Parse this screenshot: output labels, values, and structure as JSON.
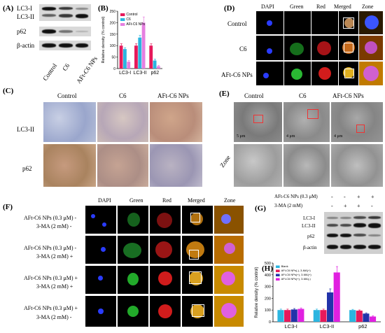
{
  "panels": {
    "A": {
      "label": "(A)",
      "rows": [
        "LC3-I",
        "LC3-II",
        "p62",
        "β-actin"
      ],
      "cols": [
        "Control",
        "C6",
        "AFt-C6 NPs"
      ]
    },
    "B": {
      "label": "(B)"
    },
    "C": {
      "label": "(C)",
      "cols": [
        "Control",
        "C6",
        "AFt-C6 NPs"
      ],
      "rows": [
        "LC3-II",
        "p62"
      ]
    },
    "D": {
      "label": "(D)",
      "cols": [
        "DAPI",
        "Green",
        "Red",
        "Merged",
        "Zone"
      ],
      "rows": [
        "Control",
        "C6",
        "AFt-C6 NPs"
      ]
    },
    "E": {
      "label": "(E)",
      "cols": [
        "Control",
        "C6",
        "AFt-C6 NPs"
      ],
      "row2": "Zone",
      "scale": [
        "5 μm",
        "4 μm",
        "4 μm"
      ]
    },
    "F": {
      "label": "(F)",
      "cols": [
        "DAPI",
        "Green",
        "Red",
        "Merged",
        "Zone"
      ],
      "rows": [
        {
          "a": "AFt-C6 NPs (0.3 μM) -",
          "b": "3-MA (2 mM) -"
        },
        {
          "a": "AFt-C6 NPs (0.3 μM) -",
          "b": "3-MA (2 mM) +"
        },
        {
          "a": "AFt-C6 NPs (0.3 μM) +",
          "b": "3-MA (2 mM) +"
        },
        {
          "a": "AFt-C6 NPs (0.3 μM) +",
          "b": "3-MA (2 mM) -"
        }
      ]
    },
    "G": {
      "label": "(G)",
      "cond1": "AFt-C6 NPs (0.3 μM)",
      "cond2": "3-MA (2 mM)",
      "signs1": [
        "-",
        "-",
        "+",
        "+"
      ],
      "signs2": [
        "-",
        "+",
        "+",
        "-"
      ],
      "rows": [
        "LC3-I",
        "LC3-II",
        "p62",
        "β-actin"
      ]
    },
    "H": {
      "label": "(H)"
    }
  },
  "chart_data": [
    {
      "type": "bar",
      "panel": "B",
      "ylabel": "Relative density (% control)",
      "categories": [
        "LC3-I",
        "LC3-II",
        "p62"
      ],
      "ylim": [
        0,
        250
      ],
      "yticks": [
        0,
        50,
        100,
        150,
        200,
        250
      ],
      "legend": "top-left",
      "series": [
        {
          "name": "Control",
          "color": "#e6195b",
          "values": [
            100,
            100,
            100
          ],
          "err": [
            8,
            8,
            8
          ]
        },
        {
          "name": "C6",
          "color": "#2bb5e0",
          "values": [
            85,
            135,
            35
          ],
          "err": [
            6,
            10,
            6
          ]
        },
        {
          "name": "AFt-C6 NPs",
          "color": "#e57fe0",
          "values": [
            30,
            200,
            10
          ],
          "err": [
            5,
            25,
            4
          ]
        }
      ]
    },
    {
      "type": "bar",
      "panel": "H",
      "ylabel": "Relative density (% control)",
      "categories": [
        "LC3-I",
        "LC3-II",
        "p62"
      ],
      "ylim": [
        0,
        500
      ],
      "yticks": [
        0,
        100,
        200,
        300,
        400,
        500
      ],
      "legend": "top-left",
      "series": [
        {
          "name": "Blank",
          "color": "#2bb5e0",
          "values": [
            100,
            100,
            100
          ],
          "err": [
            8,
            8,
            6
          ]
        },
        {
          "name": "AFt-C6 NPs(-), 3-MA(+)",
          "color": "#e6195b",
          "values": [
            100,
            100,
            95
          ],
          "err": [
            8,
            8,
            6
          ]
        },
        {
          "name": "AFt-C6 NPs(+), 3-MA(+)",
          "color": "#2233aa",
          "values": [
            105,
            250,
            70
          ],
          "err": [
            8,
            30,
            6
          ]
        },
        {
          "name": "AFt-C6 NPs(+), 3-MA(-)",
          "color": "#e020e0",
          "values": [
            110,
            420,
            45
          ],
          "err": [
            8,
            50,
            6
          ]
        }
      ]
    }
  ]
}
